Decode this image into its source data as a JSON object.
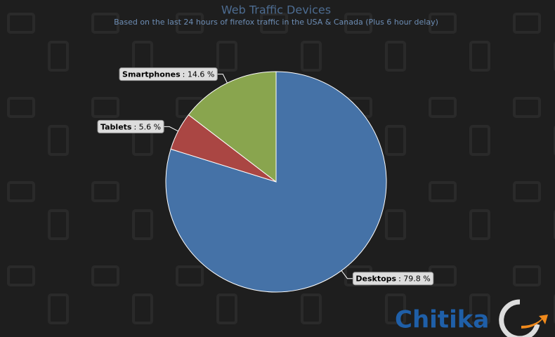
{
  "chart_data": {
    "type": "pie",
    "title": "Web Traffic Devices",
    "subtitle": "Based on the last 24 hours of firefox traffic in the USA & Canada (Plus 6 hour delay)",
    "categories": [
      "Desktops",
      "Tablets",
      "Smartphones"
    ],
    "values": [
      79.8,
      5.6,
      14.6
    ],
    "value_labels": [
      ": 79.8 %",
      ": 5.6 %",
      ": 14.6 %"
    ],
    "colors": [
      "#4572a7",
      "#aa4643",
      "#89a54e"
    ]
  },
  "logo": "Chitika"
}
